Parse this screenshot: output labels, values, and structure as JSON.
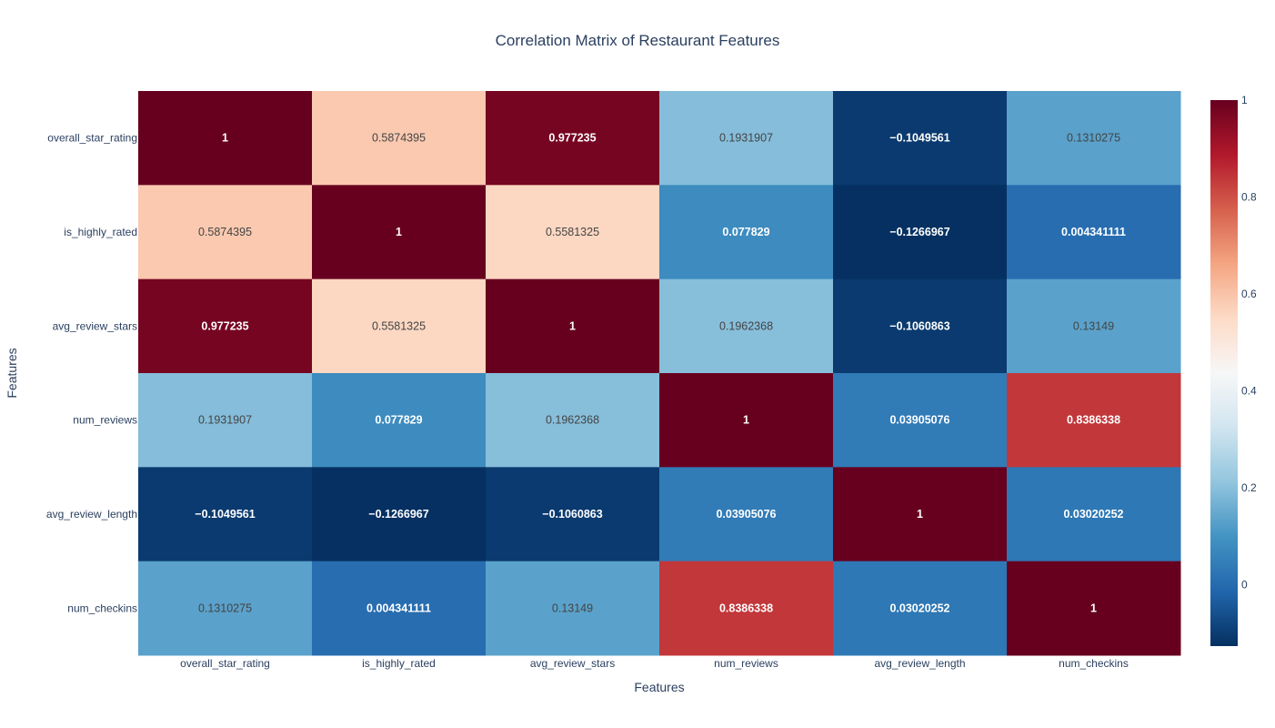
{
  "chart_data": {
    "type": "heatmap",
    "title": "Correlation Matrix of Restaurant Features",
    "xlabel": "Features",
    "ylabel": "Features",
    "x": [
      "overall_star_rating",
      "is_highly_rated",
      "avg_review_stars",
      "num_reviews",
      "avg_review_length",
      "num_checkins"
    ],
    "y": [
      "overall_star_rating",
      "is_highly_rated",
      "avg_review_stars",
      "num_reviews",
      "avg_review_length",
      "num_checkins"
    ],
    "z": [
      [
        1,
        0.5874395,
        0.977235,
        0.1931907,
        -0.1049561,
        0.1310275
      ],
      [
        0.5874395,
        1,
        0.5581325,
        0.077829,
        -0.1266967,
        0.004341111
      ],
      [
        0.977235,
        0.5581325,
        1,
        0.1962368,
        -0.1060863,
        0.13149
      ],
      [
        0.1931907,
        0.077829,
        0.1962368,
        1,
        0.03905076,
        0.8386338
      ],
      [
        -0.1049561,
        -0.1266967,
        -0.1060863,
        0.03905076,
        1,
        0.03020252
      ],
      [
        0.1310275,
        0.004341111,
        0.13149,
        0.8386338,
        0.03020252,
        1
      ]
    ],
    "text": [
      [
        "1",
        "0.5874395",
        "0.977235",
        "0.1931907",
        "−0.1049561",
        "0.1310275"
      ],
      [
        "0.5874395",
        "1",
        "0.5581325",
        "0.077829",
        "−0.1266967",
        "0.004341111"
      ],
      [
        "0.977235",
        "0.5581325",
        "1",
        "0.1962368",
        "−0.1060863",
        "0.13149"
      ],
      [
        "0.1931907",
        "0.077829",
        "0.1962368",
        "1",
        "0.03905076",
        "0.8386338"
      ],
      [
        "−0.1049561",
        "−0.1266967",
        "−0.1060863",
        "0.03905076",
        "1",
        "0.03020252"
      ],
      [
        "0.1310275",
        "0.004341111",
        "0.13149",
        "0.8386338",
        "0.03020252",
        "1"
      ]
    ],
    "zlim": [
      -0.1266967,
      1
    ],
    "colorscale": "RdBu_r",
    "colorscale_stops": [
      "#053061",
      "#2166ac",
      "#4393c3",
      "#92c5de",
      "#d1e5f0",
      "#f7f7f7",
      "#fddbc7",
      "#f4a582",
      "#d6604d",
      "#b2182b",
      "#67001f"
    ],
    "colorbar_ticks": [
      "0",
      "0.2",
      "0.4",
      "0.6",
      "0.8",
      "1"
    ],
    "colorbar_tick_values": [
      0,
      0.2,
      0.4,
      0.6,
      0.8,
      1
    ],
    "colorbar_position": "right"
  }
}
